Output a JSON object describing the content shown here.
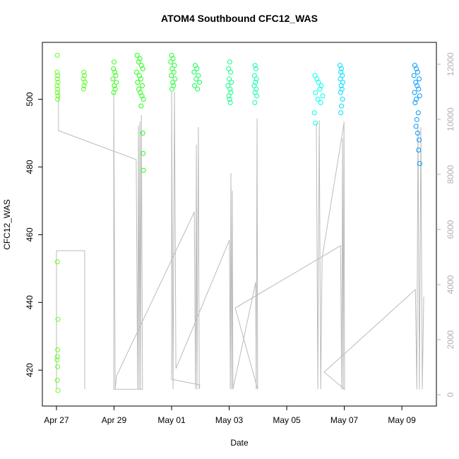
{
  "chart_data": {
    "type": "scatter",
    "title": "ATOM4 Southbound CFC12_WAS",
    "x_label": "Date",
    "y_label": "CFC12_WAS",
    "xlim": [
      -0.49,
      13.2
    ],
    "xticks": [
      {
        "value": 0,
        "label": "Apr 27"
      },
      {
        "value": 2,
        "label": "Apr 29"
      },
      {
        "value": 4,
        "label": "May 01"
      },
      {
        "value": 6,
        "label": "May 03"
      },
      {
        "value": 8,
        "label": "May 05"
      },
      {
        "value": 10,
        "label": "May 07"
      },
      {
        "value": 12,
        "label": "May 09"
      }
    ],
    "ylim": [
      409.4,
      516.8
    ],
    "yticks": [
      420,
      440,
      460,
      480,
      500
    ],
    "y2lim": [
      -410,
      12795
    ],
    "y2ticks": [
      0,
      2000,
      4000,
      6000,
      8000,
      10000,
      12000
    ],
    "series": [
      {
        "style": "line",
        "axis": "y2",
        "color": "#bbbbbb",
        "x": [
          0,
          0,
          0.98,
          0.98,
          null,
          0.07,
          0.07,
          2.77,
          2.82,
          2.85,
          2.87,
          2.9,
          2.92,
          2.95,
          2.99,
          1.99,
          1.99,
          2.04,
          2.09,
          4.79,
          4.83,
          4.86,
          4.88,
          4.93,
          4.96,
          4.98,
          4.0,
          4.0,
          4.05,
          4.1,
          4.15,
          6.01,
          6.04,
          6.06,
          6.09,
          6.11,
          6.13,
          6.92,
          6.94,
          6.97,
          6.99,
          6.21,
          9.87,
          9.91,
          9.94,
          9.96,
          9.99,
          10.01,
          9.3,
          12.47,
          12.52,
          12.56,
          12.61,
          12.66,
          12.71,
          12.76,
          null,
          9.03,
          9.08,
          9.13,
          9.18,
          9.23,
          9.99
        ],
        "values": [
          200,
          5230,
          5230,
          200,
          null,
          11000,
          9590,
          8540,
          200,
          9770,
          200,
          9920,
          200,
          10150,
          200,
          200,
          11000,
          200,
          690,
          6640,
          200,
          9080,
          200,
          9720,
          200,
          360,
          560,
          11000,
          200,
          11000,
          950,
          5620,
          200,
          8050,
          200,
          7410,
          200,
          4080,
          200,
          10030,
          200,
          3150,
          5410,
          200,
          9310,
          200,
          9920,
          200,
          820,
          3820,
          200,
          9850,
          200,
          9720,
          200,
          3560,
          null,
          9870,
          200,
          9970,
          200,
          4970,
          9870
        ]
      },
      {
        "style": "points",
        "color": "#66ff22",
        "x": [
          0.03,
          0.02,
          0.04,
          0.03,
          0.05,
          0.02,
          0.04,
          0.03,
          0.05,
          0.04,
          0.03,
          0.05,
          0.04,
          0.03,
          0.02,
          0.04,
          0.03,
          0.05
        ],
        "values": [
          513,
          508,
          507,
          506,
          505,
          504,
          503,
          502,
          501,
          500,
          452,
          435,
          426,
          424,
          423,
          421,
          417,
          414
        ]
      },
      {
        "style": "points",
        "color": "#55ff22",
        "x": [
          0.95,
          0.97,
          0.93,
          0.99,
          0.96,
          0.94
        ],
        "values": [
          508,
          507,
          506,
          505,
          504,
          503
        ]
      },
      {
        "style": "points",
        "color": "#33ff11",
        "x": [
          2.0,
          1.98,
          2.03,
          2.06,
          1.96,
          2.08,
          2.01,
          2.04,
          1.99
        ],
        "values": [
          511,
          509,
          508,
          507,
          506,
          505,
          504,
          503,
          502
        ]
      },
      {
        "style": "points",
        "color": "#22ff11",
        "x": [
          2.8,
          2.9,
          2.85,
          2.95,
          3.0,
          2.78,
          2.88,
          2.93,
          2.82,
          2.98,
          2.86,
          2.91,
          2.97,
          3.02,
          2.94,
          3.0,
          3.01,
          3.02
        ],
        "values": [
          513,
          512,
          511,
          510,
          509,
          508,
          507,
          506,
          505,
          504,
          503,
          502,
          501,
          500,
          498,
          490,
          484,
          479
        ]
      },
      {
        "style": "points",
        "color": "#22ff33",
        "x": [
          4.0,
          4.05,
          3.97,
          4.1,
          4.02,
          4.08,
          3.99,
          4.12,
          4.04,
          4.07,
          4.01
        ],
        "values": [
          513,
          512,
          511,
          510,
          509,
          508,
          507,
          506,
          505,
          504,
          503
        ]
      },
      {
        "style": "points",
        "color": "#11ff55",
        "x": [
          4.82,
          4.88,
          4.78,
          4.93,
          4.85,
          4.97,
          4.8,
          4.9
        ],
        "values": [
          510,
          509,
          508,
          507,
          506,
          505,
          504,
          503
        ]
      },
      {
        "style": "points",
        "color": "#11ff88",
        "x": [
          6.02,
          5.98,
          6.05,
          6.0,
          6.08,
          5.96,
          6.03,
          6.06,
          5.99,
          6.01,
          6.04
        ],
        "values": [
          511,
          509,
          508,
          506,
          505,
          504,
          503,
          502,
          501,
          500,
          499
        ]
      },
      {
        "style": "points",
        "color": "#11ffaa",
        "x": [
          6.9,
          6.93,
          6.88,
          6.95,
          6.91,
          6.87,
          6.94,
          6.9,
          6.96,
          6.89
        ],
        "values": [
          510,
          509,
          507,
          506,
          505,
          504,
          503,
          502,
          501,
          499
        ]
      },
      {
        "style": "points",
        "color": "#00ffee",
        "x": [
          8.98,
          9.05,
          9.1,
          9.2,
          9.15,
          9.0,
          9.25,
          9.08,
          9.18,
          8.96,
          9.0
        ],
        "values": [
          507,
          506,
          505,
          504,
          503,
          502,
          501,
          500,
          499,
          496,
          493
        ]
      },
      {
        "style": "points",
        "color": "#00ddff",
        "x": [
          9.85,
          9.9,
          9.88,
          9.93,
          9.86,
          9.95,
          9.89,
          9.92,
          9.87,
          9.94,
          9.9,
          9.88
        ],
        "values": [
          510,
          509,
          508,
          507,
          506,
          505,
          504,
          503,
          502,
          500,
          498,
          496
        ]
      },
      {
        "style": "points",
        "color": "#0099ff",
        "x": [
          12.45,
          12.5,
          12.55,
          12.42,
          12.6,
          12.48,
          12.53,
          12.58,
          12.44,
          12.62,
          12.5,
          12.46,
          12.57,
          12.52,
          12.49,
          12.55,
          12.6,
          12.58,
          12.62
        ],
        "values": [
          510,
          509,
          508,
          507,
          506,
          505,
          504,
          503,
          502,
          501,
          500,
          499,
          496,
          494,
          492,
          490,
          488,
          485,
          481
        ]
      }
    ]
  }
}
